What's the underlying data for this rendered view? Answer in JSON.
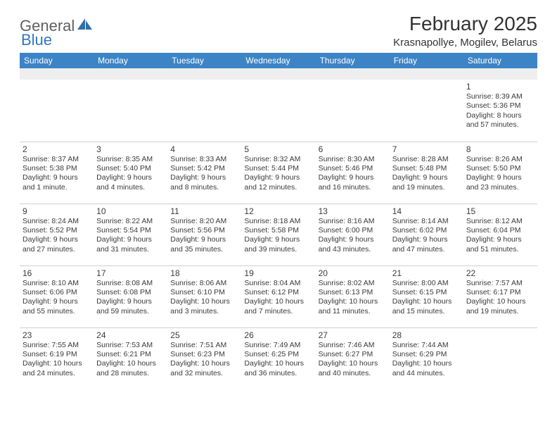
{
  "logo": {
    "general": "General",
    "blue": "Blue"
  },
  "title": "February 2025",
  "location": "Krasnapollye, Mogilev, Belarus",
  "colors": {
    "header_bg": "#3d84c6",
    "header_fg": "#ffffff",
    "text": "#3a3a3a",
    "border": "#cfcfcf",
    "logo_gray": "#5f5f5f",
    "logo_blue": "#3178bd",
    "blank_bg": "#eeeeee"
  },
  "dayNames": [
    "Sunday",
    "Monday",
    "Tuesday",
    "Wednesday",
    "Thursday",
    "Friday",
    "Saturday"
  ],
  "weeks": [
    [
      {
        "day": "",
        "sunrise": "",
        "sunset": "",
        "daylight": ""
      },
      {
        "day": "",
        "sunrise": "",
        "sunset": "",
        "daylight": ""
      },
      {
        "day": "",
        "sunrise": "",
        "sunset": "",
        "daylight": ""
      },
      {
        "day": "",
        "sunrise": "",
        "sunset": "",
        "daylight": ""
      },
      {
        "day": "",
        "sunrise": "",
        "sunset": "",
        "daylight": ""
      },
      {
        "day": "",
        "sunrise": "",
        "sunset": "",
        "daylight": ""
      },
      {
        "day": "1",
        "sunrise": "Sunrise: 8:39 AM",
        "sunset": "Sunset: 5:36 PM",
        "daylight": "Daylight: 8 hours and 57 minutes."
      }
    ],
    [
      {
        "day": "2",
        "sunrise": "Sunrise: 8:37 AM",
        "sunset": "Sunset: 5:38 PM",
        "daylight": "Daylight: 9 hours and 1 minute."
      },
      {
        "day": "3",
        "sunrise": "Sunrise: 8:35 AM",
        "sunset": "Sunset: 5:40 PM",
        "daylight": "Daylight: 9 hours and 4 minutes."
      },
      {
        "day": "4",
        "sunrise": "Sunrise: 8:33 AM",
        "sunset": "Sunset: 5:42 PM",
        "daylight": "Daylight: 9 hours and 8 minutes."
      },
      {
        "day": "5",
        "sunrise": "Sunrise: 8:32 AM",
        "sunset": "Sunset: 5:44 PM",
        "daylight": "Daylight: 9 hours and 12 minutes."
      },
      {
        "day": "6",
        "sunrise": "Sunrise: 8:30 AM",
        "sunset": "Sunset: 5:46 PM",
        "daylight": "Daylight: 9 hours and 16 minutes."
      },
      {
        "day": "7",
        "sunrise": "Sunrise: 8:28 AM",
        "sunset": "Sunset: 5:48 PM",
        "daylight": "Daylight: 9 hours and 19 minutes."
      },
      {
        "day": "8",
        "sunrise": "Sunrise: 8:26 AM",
        "sunset": "Sunset: 5:50 PM",
        "daylight": "Daylight: 9 hours and 23 minutes."
      }
    ],
    [
      {
        "day": "9",
        "sunrise": "Sunrise: 8:24 AM",
        "sunset": "Sunset: 5:52 PM",
        "daylight": "Daylight: 9 hours and 27 minutes."
      },
      {
        "day": "10",
        "sunrise": "Sunrise: 8:22 AM",
        "sunset": "Sunset: 5:54 PM",
        "daylight": "Daylight: 9 hours and 31 minutes."
      },
      {
        "day": "11",
        "sunrise": "Sunrise: 8:20 AM",
        "sunset": "Sunset: 5:56 PM",
        "daylight": "Daylight: 9 hours and 35 minutes."
      },
      {
        "day": "12",
        "sunrise": "Sunrise: 8:18 AM",
        "sunset": "Sunset: 5:58 PM",
        "daylight": "Daylight: 9 hours and 39 minutes."
      },
      {
        "day": "13",
        "sunrise": "Sunrise: 8:16 AM",
        "sunset": "Sunset: 6:00 PM",
        "daylight": "Daylight: 9 hours and 43 minutes."
      },
      {
        "day": "14",
        "sunrise": "Sunrise: 8:14 AM",
        "sunset": "Sunset: 6:02 PM",
        "daylight": "Daylight: 9 hours and 47 minutes."
      },
      {
        "day": "15",
        "sunrise": "Sunrise: 8:12 AM",
        "sunset": "Sunset: 6:04 PM",
        "daylight": "Daylight: 9 hours and 51 minutes."
      }
    ],
    [
      {
        "day": "16",
        "sunrise": "Sunrise: 8:10 AM",
        "sunset": "Sunset: 6:06 PM",
        "daylight": "Daylight: 9 hours and 55 minutes."
      },
      {
        "day": "17",
        "sunrise": "Sunrise: 8:08 AM",
        "sunset": "Sunset: 6:08 PM",
        "daylight": "Daylight: 9 hours and 59 minutes."
      },
      {
        "day": "18",
        "sunrise": "Sunrise: 8:06 AM",
        "sunset": "Sunset: 6:10 PM",
        "daylight": "Daylight: 10 hours and 3 minutes."
      },
      {
        "day": "19",
        "sunrise": "Sunrise: 8:04 AM",
        "sunset": "Sunset: 6:12 PM",
        "daylight": "Daylight: 10 hours and 7 minutes."
      },
      {
        "day": "20",
        "sunrise": "Sunrise: 8:02 AM",
        "sunset": "Sunset: 6:13 PM",
        "daylight": "Daylight: 10 hours and 11 minutes."
      },
      {
        "day": "21",
        "sunrise": "Sunrise: 8:00 AM",
        "sunset": "Sunset: 6:15 PM",
        "daylight": "Daylight: 10 hours and 15 minutes."
      },
      {
        "day": "22",
        "sunrise": "Sunrise: 7:57 AM",
        "sunset": "Sunset: 6:17 PM",
        "daylight": "Daylight: 10 hours and 19 minutes."
      }
    ],
    [
      {
        "day": "23",
        "sunrise": "Sunrise: 7:55 AM",
        "sunset": "Sunset: 6:19 PM",
        "daylight": "Daylight: 10 hours and 24 minutes."
      },
      {
        "day": "24",
        "sunrise": "Sunrise: 7:53 AM",
        "sunset": "Sunset: 6:21 PM",
        "daylight": "Daylight: 10 hours and 28 minutes."
      },
      {
        "day": "25",
        "sunrise": "Sunrise: 7:51 AM",
        "sunset": "Sunset: 6:23 PM",
        "daylight": "Daylight: 10 hours and 32 minutes."
      },
      {
        "day": "26",
        "sunrise": "Sunrise: 7:49 AM",
        "sunset": "Sunset: 6:25 PM",
        "daylight": "Daylight: 10 hours and 36 minutes."
      },
      {
        "day": "27",
        "sunrise": "Sunrise: 7:46 AM",
        "sunset": "Sunset: 6:27 PM",
        "daylight": "Daylight: 10 hours and 40 minutes."
      },
      {
        "day": "28",
        "sunrise": "Sunrise: 7:44 AM",
        "sunset": "Sunset: 6:29 PM",
        "daylight": "Daylight: 10 hours and 44 minutes."
      },
      {
        "day": "",
        "sunrise": "",
        "sunset": "",
        "daylight": ""
      }
    ]
  ]
}
